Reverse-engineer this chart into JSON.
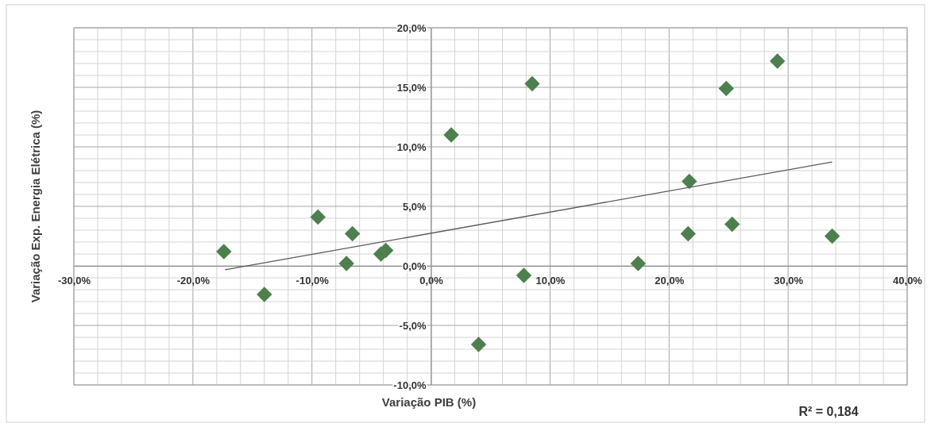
{
  "chart_data": {
    "type": "scatter",
    "xlabel": "Variação PIB (%)",
    "ylabel": "Variação Exp. Energia Elétrica (%)",
    "annotations": [
      "R² = 0,184"
    ],
    "xlim": [
      -30,
      40
    ],
    "ylim": [
      -10,
      20
    ],
    "xticks": [
      {
        "value": -30,
        "label": "-30,0%"
      },
      {
        "value": -28,
        "label": null
      },
      {
        "value": -26,
        "label": null
      },
      {
        "value": -24,
        "label": null
      },
      {
        "value": -22,
        "label": null
      },
      {
        "value": -20,
        "label": "-20,0%"
      },
      {
        "value": -18,
        "label": null
      },
      {
        "value": -16,
        "label": null
      },
      {
        "value": -14,
        "label": null
      },
      {
        "value": -12,
        "label": null
      },
      {
        "value": -10,
        "label": "-10,0%"
      },
      {
        "value": -8,
        "label": null
      },
      {
        "value": -6,
        "label": null
      },
      {
        "value": -4,
        "label": null
      },
      {
        "value": -2,
        "label": null
      },
      {
        "value": 0,
        "label": "0,0%"
      },
      {
        "value": 2,
        "label": null
      },
      {
        "value": 4,
        "label": null
      },
      {
        "value": 6,
        "label": null
      },
      {
        "value": 8,
        "label": null
      },
      {
        "value": 10,
        "label": "10,0%"
      },
      {
        "value": 12,
        "label": null
      },
      {
        "value": 14,
        "label": null
      },
      {
        "value": 16,
        "label": null
      },
      {
        "value": 18,
        "label": null
      },
      {
        "value": 20,
        "label": "20,0%"
      },
      {
        "value": 22,
        "label": null
      },
      {
        "value": 24,
        "label": null
      },
      {
        "value": 26,
        "label": null
      },
      {
        "value": 28,
        "label": null
      },
      {
        "value": 30,
        "label": "30,0%"
      },
      {
        "value": 32,
        "label": null
      },
      {
        "value": 34,
        "label": null
      },
      {
        "value": 36,
        "label": null
      },
      {
        "value": 38,
        "label": null
      },
      {
        "value": 40,
        "label": "40,0%"
      }
    ],
    "yticks": [
      {
        "value": -10,
        "label": "-10,0%"
      },
      {
        "value": -9,
        "label": null
      },
      {
        "value": -8,
        "label": null
      },
      {
        "value": -7,
        "label": null
      },
      {
        "value": -6,
        "label": null
      },
      {
        "value": -5,
        "label": "-5,0%"
      },
      {
        "value": -4,
        "label": null
      },
      {
        "value": -3,
        "label": null
      },
      {
        "value": -2,
        "label": null
      },
      {
        "value": -1,
        "label": null
      },
      {
        "value": 0,
        "label": "0,0%"
      },
      {
        "value": 1,
        "label": null
      },
      {
        "value": 2,
        "label": null
      },
      {
        "value": 3,
        "label": null
      },
      {
        "value": 4,
        "label": null
      },
      {
        "value": 5,
        "label": "5,0%"
      },
      {
        "value": 6,
        "label": null
      },
      {
        "value": 7,
        "label": null
      },
      {
        "value": 8,
        "label": null
      },
      {
        "value": 9,
        "label": null
      },
      {
        "value": 10,
        "label": "10,0%"
      },
      {
        "value": 11,
        "label": null
      },
      {
        "value": 12,
        "label": null
      },
      {
        "value": 13,
        "label": null
      },
      {
        "value": 14,
        "label": null
      },
      {
        "value": 15,
        "label": "15,0%"
      },
      {
        "value": 16,
        "label": null
      },
      {
        "value": 17,
        "label": null
      },
      {
        "value": 18,
        "label": null
      },
      {
        "value": 19,
        "label": null
      },
      {
        "value": 20,
        "label": "20,0%"
      }
    ],
    "grid": true,
    "marker": "diamond",
    "series": [
      {
        "color": "#4e7f4e",
        "x": [
          -17.4,
          -14.0,
          -9.5,
          -7.1,
          -6.6,
          -4.2,
          -3.8,
          1.7,
          4.0,
          7.8,
          8.5,
          17.4,
          21.7,
          21.6,
          24.8,
          25.3,
          29.1,
          33.7
        ],
        "values": [
          1.2,
          -2.4,
          4.1,
          0.2,
          2.7,
          1.0,
          1.3,
          11.0,
          -6.6,
          -0.8,
          15.3,
          0.2,
          7.1,
          2.7,
          14.9,
          3.5,
          17.2,
          2.5
        ]
      },
      {
        "type": "line",
        "color": "#595959",
        "marker": "none",
        "line_style": "solid",
        "x": [
          -17.3,
          33.7
        ],
        "values": [
          -0.33,
          8.73
        ]
      }
    ]
  }
}
